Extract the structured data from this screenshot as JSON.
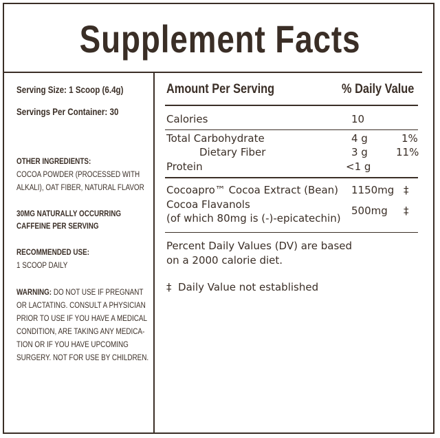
{
  "title": "Supplement Facts",
  "left": {
    "serving_size": "Serving Size: 1 Scoop (6.4g)",
    "servings_per_container": "Servings Per Container: 30",
    "other_ingredients_label": "OTHER INGREDIENTS:",
    "other_ingredients_lines": [
      "COCOA POWDER (PROCESSED WITH",
      "ALKALI), OAT FIBER, NATURAL FLAVOR"
    ],
    "caffeine_lines": [
      "30MG NATURALLY OCCURRING",
      "CAFFEINE PER SERVING"
    ],
    "recommended_label": "RECOMMENDED USE:",
    "recommended_text": "1 SCOOP DAILY",
    "warning_label": "WARNING:",
    "warning_lines": [
      " DO NOT USE IF PREGNANT",
      "OR LACTATING. CONSULT A PHYSICIAN",
      "PRIOR TO USE IF YOU HAVE A MEDICAL",
      "CONDITION, ARE TAKING ANY MEDICA-",
      "TION OR IF YOU HAVE UPCOMING",
      "SURGERY. NOT FOR USE BY CHILDREN."
    ]
  },
  "table": {
    "header_amount": "Amount Per Serving",
    "header_dv": "% Daily Value",
    "calories": {
      "label": "Calories",
      "amount": "10"
    },
    "total_carb": {
      "label": "Total Carbohydrate",
      "amount": "4 g",
      "dv": "1%"
    },
    "dietary_fiber": {
      "label": "Dietary Fiber",
      "amount": "3 g",
      "dv": "11%"
    },
    "protein": {
      "label": "Protein",
      "amount": "<1 g"
    },
    "cocoa_extract": {
      "label": "Cocoapro™ Cocoa Extract (Bean)",
      "amount": "1150mg",
      "dv": "‡"
    },
    "flavanols": {
      "label": "Cocoa Flavanols",
      "sublabel": "(of which 80mg is (-)-epicatechin)",
      "amount": "500mg",
      "dv": "‡"
    },
    "footnote_lines": [
      "Percent Daily Values (DV) are based",
      "on a 2000 calorie diet."
    ],
    "dagger_note": "‡  Daily Value not established"
  }
}
